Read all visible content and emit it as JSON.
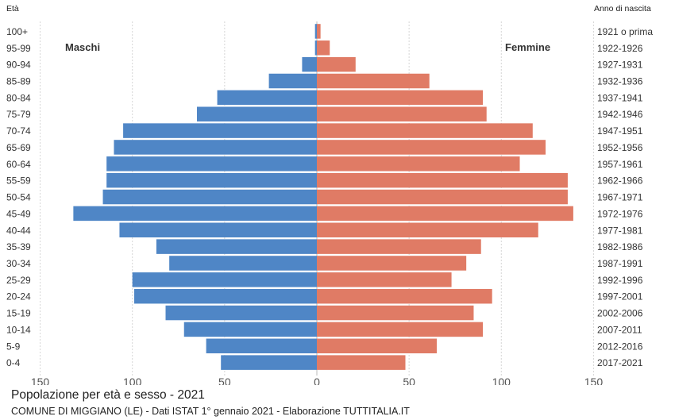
{
  "chart_data": {
    "type": "bar",
    "orientation": "horizontal",
    "title": "Popolazione per età e sesso - 2021",
    "subtitle": "COMUNE DI MIGGIANO (LE) - Dati ISTAT 1° gennaio 2021 - Elaborazione TUTTITALIA.IT",
    "left_axis_header": "Età",
    "right_axis_header": "Anno di nascita",
    "categories": [
      "100+",
      "95-99",
      "90-94",
      "85-89",
      "80-84",
      "75-79",
      "70-74",
      "65-69",
      "60-64",
      "55-59",
      "50-54",
      "45-49",
      "40-44",
      "35-39",
      "30-34",
      "25-29",
      "20-24",
      "15-19",
      "10-14",
      "5-9",
      "0-4"
    ],
    "birth_years": [
      "1921 o prima",
      "1922-1926",
      "1927-1931",
      "1932-1936",
      "1937-1941",
      "1942-1946",
      "1947-1951",
      "1952-1956",
      "1957-1961",
      "1962-1966",
      "1967-1971",
      "1972-1976",
      "1977-1981",
      "1982-1986",
      "1987-1991",
      "1992-1996",
      "1997-2001",
      "2002-2006",
      "2007-2011",
      "2012-2016",
      "2017-2021"
    ],
    "series": [
      {
        "name": "Maschi",
        "color": "#4f86c6",
        "values": [
          1,
          1,
          8,
          26,
          54,
          65,
          105,
          110,
          114,
          114,
          116,
          132,
          107,
          87,
          80,
          100,
          99,
          82,
          72,
          60,
          52
        ]
      },
      {
        "name": "Femmine",
        "color": "#e07b65",
        "values": [
          2,
          7,
          21,
          61,
          90,
          92,
          117,
          124,
          110,
          136,
          136,
          139,
          120,
          89,
          81,
          73,
          95,
          85,
          90,
          65,
          48
        ]
      }
    ],
    "xlim": [
      -150,
      150
    ],
    "xticks": [
      150,
      100,
      50,
      0,
      50,
      100,
      150
    ],
    "grid": true
  }
}
